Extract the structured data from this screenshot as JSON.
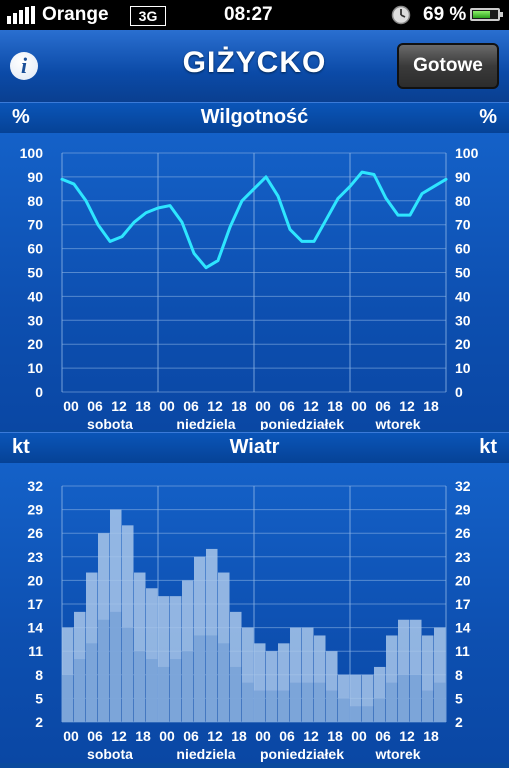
{
  "status_bar": {
    "carrier": "Orange",
    "network": "3G",
    "time": "08:27",
    "battery": "69 %",
    "battery_level": 0.69,
    "icons": [
      "signal-bars-icon",
      "alarm-clock-icon",
      "battery-icon"
    ]
  },
  "navbar": {
    "info_label": "i",
    "title": "GIŻYCKO",
    "done_label": "Gotowe"
  },
  "humidity": {
    "unit_left": "%",
    "title": "Wilgotność",
    "unit_right": "%"
  },
  "wind": {
    "unit_left": "kt",
    "title": "Wiatr",
    "unit_right": "kt"
  },
  "colors": {
    "background": "#0a4a9e",
    "humidity_line": "#2ee6ff",
    "wind_gust": "#a9c7ea",
    "wind_mean": "#7aa3d8",
    "grid": "#8fb6e6"
  },
  "chart_data": [
    {
      "type": "line",
      "title": "Wilgotność",
      "ylabel": "%",
      "ylim": [
        0,
        100
      ],
      "yticks": [
        0,
        10,
        20,
        30,
        40,
        50,
        60,
        70,
        80,
        90,
        100
      ],
      "hour_labels": [
        "00",
        "06",
        "12",
        "18"
      ],
      "day_labels": [
        "sobota",
        "niedziela",
        "poniedziałek",
        "wtorek"
      ],
      "x_hours": [
        0,
        3,
        6,
        9,
        12,
        15,
        18,
        21,
        24,
        27,
        30,
        33,
        36,
        39,
        42,
        45,
        48,
        51,
        54,
        57,
        60,
        63,
        66,
        69,
        72,
        75,
        78,
        81,
        84,
        87,
        90,
        93,
        96,
        99,
        102,
        105,
        108,
        111
      ],
      "values": [
        89,
        87,
        80,
        70,
        63,
        65,
        71,
        75,
        77,
        78,
        71,
        58,
        52,
        55,
        69,
        80,
        85,
        90,
        82,
        68,
        63,
        63,
        72,
        81,
        86,
        92,
        91,
        81,
        74,
        74,
        83,
        86,
        89,
        90,
        86,
        90,
        88,
        89
      ],
      "grid": true
    },
    {
      "type": "bar",
      "title": "Wiatr",
      "ylabel": "kt",
      "ylim": [
        2,
        32
      ],
      "yticks": [
        2,
        5,
        8,
        11,
        14,
        17,
        20,
        23,
        26,
        29,
        32
      ],
      "hour_labels": [
        "00",
        "06",
        "12",
        "18"
      ],
      "day_labels": [
        "sobota",
        "niedziela",
        "poniedziałek",
        "wtorek"
      ],
      "x_hours": [
        0,
        3,
        6,
        9,
        12,
        15,
        18,
        21,
        24,
        27,
        30,
        33,
        36,
        39,
        42,
        45,
        48,
        51,
        54,
        57,
        60,
        63,
        66,
        69,
        72,
        75,
        78,
        81,
        84,
        87,
        90,
        93,
        96,
        99,
        102,
        105,
        108,
        111
      ],
      "series": [
        {
          "name": "",
          "role": "gust",
          "values": [
            14,
            16,
            21,
            26,
            29,
            27,
            21,
            19,
            18,
            18,
            20,
            23,
            24,
            21,
            16,
            14,
            12,
            11,
            12,
            14,
            14,
            13,
            11,
            8,
            8,
            8,
            9,
            13,
            15,
            15,
            13,
            14,
            15,
            13,
            12,
            12,
            11,
            13
          ]
        },
        {
          "name": "",
          "role": "mean",
          "values": [
            8,
            10,
            12,
            15,
            16,
            14,
            11,
            10,
            9,
            10,
            11,
            13,
            13,
            12,
            9,
            7,
            6,
            6,
            6,
            7,
            7,
            7,
            6,
            5,
            4,
            4,
            5,
            7,
            8,
            8,
            6,
            7,
            8,
            7,
            7,
            6,
            6,
            7
          ]
        }
      ],
      "grid": true
    }
  ]
}
